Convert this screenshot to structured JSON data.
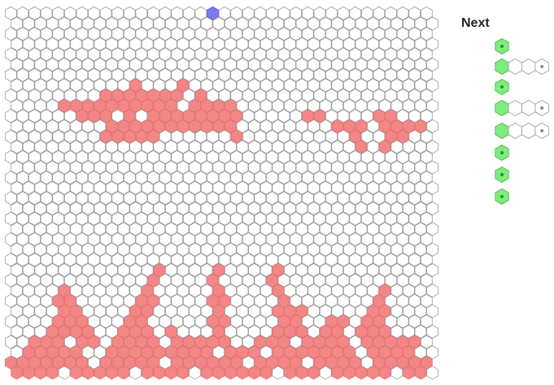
{
  "sidebar": {
    "title": "Next"
  }
}
